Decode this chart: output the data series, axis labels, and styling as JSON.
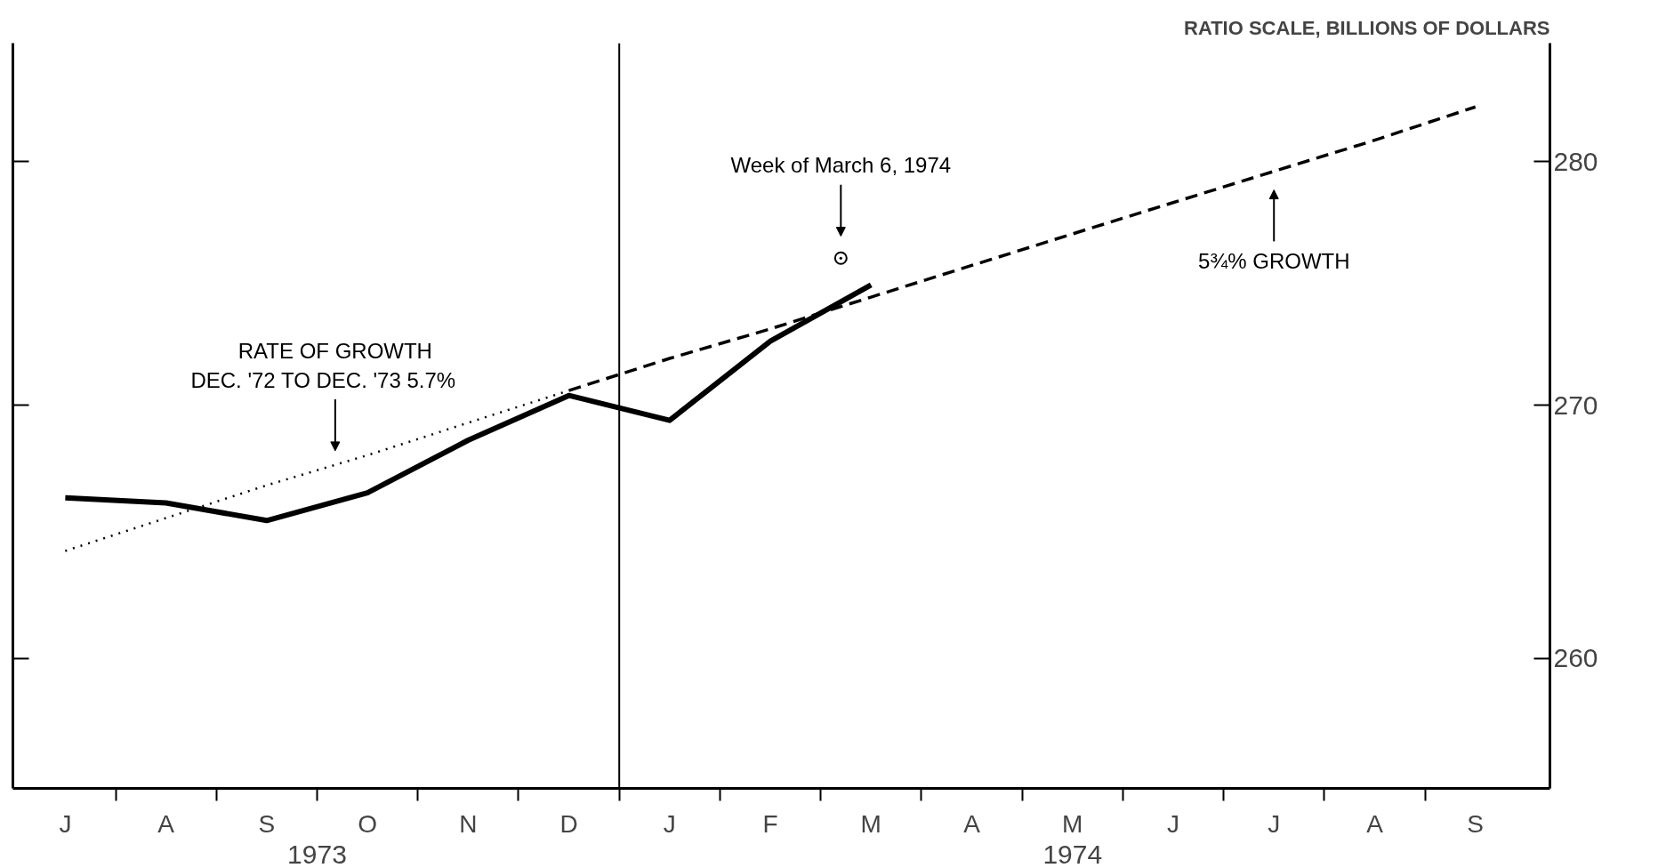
{
  "chart_data": {
    "type": "line",
    "ylabel": "RATIO SCALE, BILLIONS OF DOLLARS",
    "log": "y",
    "grid": false,
    "categories": [
      "J",
      "A",
      "S",
      "O",
      "N",
      "D",
      "J",
      "F",
      "M",
      "A",
      "M",
      "J",
      "J",
      "A",
      "S"
    ],
    "ylim": [
      255,
      285
    ],
    "yticks": [
      260,
      270,
      280
    ],
    "series": [
      {
        "color": "#000000",
        "line_style": "solid",
        "values": [
          266.3,
          266.1,
          265.4,
          266.5,
          268.6,
          270.4,
          269.4,
          272.6,
          274.9,
          null,
          null,
          null,
          null,
          null,
          null
        ]
      },
      {
        "color": "#000000",
        "line_style": "dotted",
        "values": [
          264.2,
          265.5,
          266.8,
          268.0,
          269.3,
          270.6,
          null,
          null,
          null,
          null,
          null,
          null,
          null,
          null,
          null
        ]
      },
      {
        "color": "#000000",
        "line_style": "dashed",
        "values": [
          null,
          null,
          null,
          null,
          null,
          270.6,
          271.9,
          273.1,
          274.4,
          275.7,
          277.0,
          278.3,
          279.6,
          280.9,
          282.3
        ]
      },
      {
        "type": "scatter",
        "marker": "circle",
        "color": "#000000",
        "values": [
          null,
          null,
          null,
          null,
          null,
          null,
          null,
          null,
          276.0,
          null,
          null,
          null,
          null,
          null,
          null
        ]
      }
    ],
    "annotations": [
      "RATE OF GROWTH\nDEC. '72 TO DEC. '73     5.7%",
      "Week of March 6, 1974",
      "5¾% GROWTH",
      "1973",
      "1974"
    ]
  }
}
